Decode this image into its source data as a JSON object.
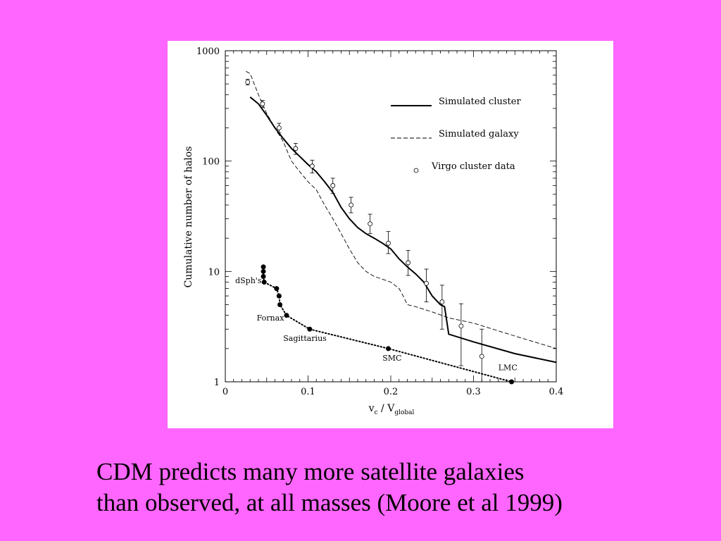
{
  "slide": {
    "caption_line_1": "CDM predicts many more satellite galaxies",
    "caption_line_2": "than observed, at all masses  (Moore et al 1999)",
    "background_color": "#ff66ff"
  },
  "chart_data": {
    "type": "line",
    "ylabel": "Cumulative number of halos",
    "xlabel_main": "v",
    "xlabel_sub1": "c",
    "xlabel_mid": " / V",
    "xlabel_sub2": "global",
    "xlim": [
      0,
      0.4
    ],
    "ylim": [
      1,
      1000
    ],
    "y_scale": "log",
    "x_ticks": [
      0,
      0.1,
      0.2,
      0.3,
      0.4
    ],
    "x_tick_labels": [
      "0",
      "0.1",
      "0.2",
      "0.3",
      "0.4"
    ],
    "y_ticks": [
      1,
      10,
      100,
      1000
    ],
    "y_tick_labels": [
      "1",
      "10",
      "100",
      "1000"
    ],
    "legend": {
      "placement": "top-right",
      "items": [
        {
          "label": "Simulated cluster",
          "style": "solid"
        },
        {
          "label": "Simulated galaxy",
          "style": "dashed"
        },
        {
          "label": "Virgo cluster data",
          "style": "circle"
        }
      ]
    },
    "series": [
      {
        "name": "Simulated cluster",
        "style": "solid",
        "points": [
          [
            0.03,
            380
          ],
          [
            0.04,
            330
          ],
          [
            0.05,
            260
          ],
          [
            0.06,
            200
          ],
          [
            0.07,
            160
          ],
          [
            0.08,
            130
          ],
          [
            0.09,
            110
          ],
          [
            0.1,
            93
          ],
          [
            0.11,
            80
          ],
          [
            0.12,
            65
          ],
          [
            0.13,
            52
          ],
          [
            0.14,
            38
          ],
          [
            0.15,
            30
          ],
          [
            0.16,
            25
          ],
          [
            0.17,
            22
          ],
          [
            0.18,
            20
          ],
          [
            0.19,
            18
          ],
          [
            0.2,
            16
          ],
          [
            0.21,
            13
          ],
          [
            0.22,
            11
          ],
          [
            0.23,
            9.5
          ],
          [
            0.24,
            8
          ],
          [
            0.25,
            6
          ],
          [
            0.26,
            5
          ],
          [
            0.265,
            4.8
          ],
          [
            0.27,
            2.7
          ],
          [
            0.3,
            2.3
          ],
          [
            0.35,
            1.8
          ],
          [
            0.4,
            1.5
          ]
        ]
      },
      {
        "name": "Simulated galaxy",
        "style": "dashed",
        "points": [
          [
            0.025,
            650
          ],
          [
            0.03,
            620
          ],
          [
            0.04,
            400
          ],
          [
            0.05,
            270
          ],
          [
            0.06,
            200
          ],
          [
            0.07,
            150
          ],
          [
            0.08,
            100
          ],
          [
            0.09,
            80
          ],
          [
            0.1,
            65
          ],
          [
            0.11,
            55
          ],
          [
            0.12,
            40
          ],
          [
            0.13,
            30
          ],
          [
            0.14,
            22
          ],
          [
            0.15,
            16
          ],
          [
            0.16,
            12
          ],
          [
            0.17,
            10
          ],
          [
            0.18,
            9
          ],
          [
            0.19,
            8.5
          ],
          [
            0.2,
            8
          ],
          [
            0.21,
            7
          ],
          [
            0.215,
            6
          ],
          [
            0.22,
            5
          ],
          [
            0.23,
            4.8
          ],
          [
            0.25,
            4.3
          ],
          [
            0.27,
            3.8
          ],
          [
            0.3,
            3.4
          ],
          [
            0.35,
            2.6
          ],
          [
            0.4,
            2
          ]
        ]
      }
    ],
    "virgo_data": {
      "name": "Virgo cluster data",
      "points": [
        {
          "x": 0.027,
          "y": 520,
          "lo": 490,
          "hi": 550
        },
        {
          "x": 0.045,
          "y": 330,
          "lo": 305,
          "hi": 355
        },
        {
          "x": 0.065,
          "y": 200,
          "lo": 180,
          "hi": 220
        },
        {
          "x": 0.085,
          "y": 130,
          "lo": 115,
          "hi": 145
        },
        {
          "x": 0.105,
          "y": 90,
          "lo": 78,
          "hi": 102
        },
        {
          "x": 0.13,
          "y": 60,
          "lo": 51,
          "hi": 70
        },
        {
          "x": 0.152,
          "y": 40,
          "lo": 34,
          "hi": 47
        },
        {
          "x": 0.175,
          "y": 27,
          "lo": 22,
          "hi": 33
        },
        {
          "x": 0.197,
          "y": 18,
          "lo": 14.5,
          "hi": 23
        },
        {
          "x": 0.221,
          "y": 12,
          "lo": 9.2,
          "hi": 15.5
        },
        {
          "x": 0.243,
          "y": 7.8,
          "lo": 5.3,
          "hi": 10.5
        },
        {
          "x": 0.262,
          "y": 5.3,
          "lo": 3.0,
          "hi": 7.5
        },
        {
          "x": 0.285,
          "y": 3.2,
          "lo": 1.4,
          "hi": 5.1
        },
        {
          "x": 0.31,
          "y": 1.7,
          "lo": 1.0,
          "hi": 3.0
        }
      ]
    },
    "observed_satellites": {
      "style": "dotted",
      "points": [
        [
          0.046,
          11
        ],
        [
          0.046,
          10
        ],
        [
          0.046,
          9
        ],
        [
          0.047,
          8
        ],
        [
          0.062,
          7
        ],
        [
          0.065,
          6
        ],
        [
          0.066,
          5
        ],
        [
          0.074,
          4
        ],
        [
          0.102,
          3
        ],
        [
          0.197,
          2
        ],
        [
          0.346,
          1
        ]
      ],
      "labels": [
        {
          "text": "dSph's",
          "x": 0.012,
          "y": 7.8
        },
        {
          "text": "Fornax",
          "x": 0.038,
          "y": 3.6
        },
        {
          "text": "Sagittarius",
          "x": 0.07,
          "y": 2.35
        },
        {
          "text": "SMC",
          "x": 0.19,
          "y": 1.55
        },
        {
          "text": "LMC",
          "x": 0.33,
          "y": 1.27
        }
      ]
    }
  }
}
